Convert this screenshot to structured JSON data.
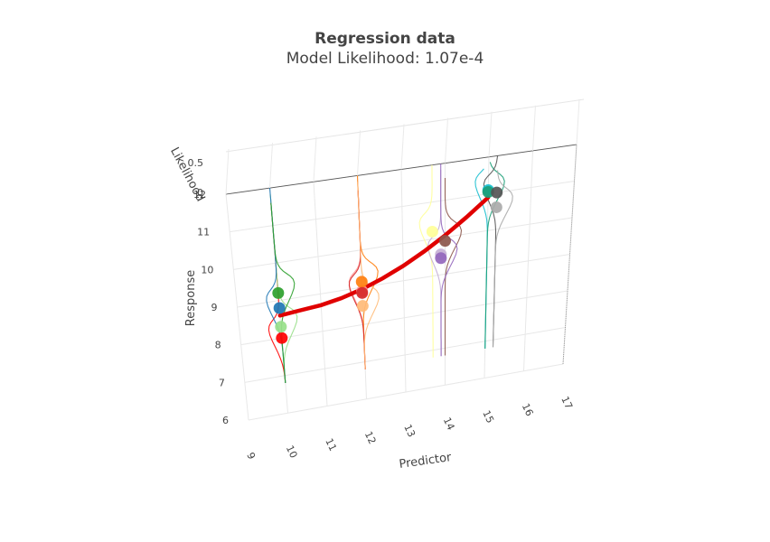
{
  "chart_data": {
    "type": "scatter3d",
    "title": "Regression data",
    "subtitle": "Model Likelihood: 1.07e-4",
    "axes": {
      "x": {
        "label": "Predictor",
        "ticks": [
          "9",
          "10",
          "11",
          "12",
          "13",
          "14",
          "15",
          "16",
          "17"
        ],
        "range": [
          9,
          17
        ]
      },
      "y": {
        "label": "Response",
        "ticks": [
          "6",
          "7",
          "8",
          "9",
          "10",
          "11",
          "12"
        ],
        "range": [
          6,
          12
        ]
      },
      "z": {
        "label": "Likelihood",
        "ticks": [
          "0",
          "0.5"
        ],
        "range": [
          0,
          0.5
        ]
      }
    },
    "regression_line": {
      "color": "#e00000",
      "x": [
        10,
        10.5,
        11,
        11.5,
        12,
        12.5,
        13,
        13.5,
        14,
        14.5,
        15
      ],
      "y": [
        8.6,
        8.65,
        8.7,
        8.8,
        8.95,
        9.15,
        9.4,
        9.7,
        10.05,
        10.45,
        10.9
      ]
    },
    "points": [
      {
        "x": 10.0,
        "y": 8.0,
        "color": "#ff0000"
      },
      {
        "x": 10.0,
        "y": 8.3,
        "color": "#98df8a"
      },
      {
        "x": 10.0,
        "y": 8.8,
        "color": "#1f77b4"
      },
      {
        "x": 10.0,
        "y": 9.2,
        "color": "#2ca02c"
      },
      {
        "x": 12.0,
        "y": 8.9,
        "color": "#ff9896"
      },
      {
        "x": 12.0,
        "y": 9.15,
        "color": "#ff7f0e"
      },
      {
        "x": 12.0,
        "y": 8.85,
        "color": "#d62728"
      },
      {
        "x": 12.0,
        "y": 8.5,
        "color": "#ffbb78"
      },
      {
        "x": 13.7,
        "y": 10.2,
        "color": "#ffff99"
      },
      {
        "x": 14.0,
        "y": 9.9,
        "color": "#8c564b"
      },
      {
        "x": 13.9,
        "y": 9.55,
        "color": "#c5b0d5"
      },
      {
        "x": 13.9,
        "y": 9.45,
        "color": "#9467bd"
      },
      {
        "x": 15.0,
        "y": 11.1,
        "color": "#17becf"
      },
      {
        "x": 15.0,
        "y": 11.05,
        "color": "#1b9e77"
      },
      {
        "x": 15.2,
        "y": 11.0,
        "color": "#555555"
      },
      {
        "x": 15.2,
        "y": 10.6,
        "color": "#aaaaaa"
      }
    ],
    "grid": true
  }
}
